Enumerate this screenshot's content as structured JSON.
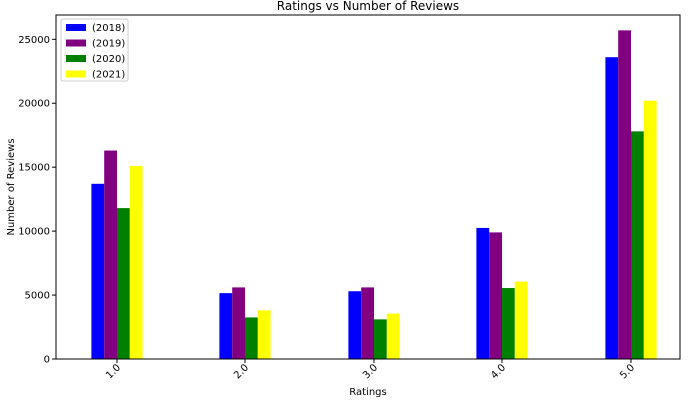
{
  "chart_data": {
    "type": "bar",
    "title": "Ratings vs Number of Reviews",
    "xlabel": "Ratings",
    "ylabel": "Number of Reviews",
    "categories": [
      "1.0",
      "2.0",
      "3.0",
      "4.0",
      "5.0"
    ],
    "ylim": [
      0,
      26900
    ],
    "yticks": [
      0,
      5000,
      10000,
      15000,
      20000,
      25000
    ],
    "series": [
      {
        "name": "(2018)",
        "color": "#0000ff",
        "values": [
          13700,
          5150,
          5300,
          10250,
          23600
        ]
      },
      {
        "name": "(2019)",
        "color": "#800080",
        "values": [
          16300,
          5600,
          5600,
          9900,
          25700
        ]
      },
      {
        "name": "(2020)",
        "color": "#008000",
        "values": [
          11800,
          3250,
          3100,
          5550,
          17800
        ]
      },
      {
        "name": "(2021)",
        "color": "#ffff00",
        "values": [
          15100,
          3800,
          3550,
          6050,
          20200
        ]
      }
    ],
    "legend": "top-left",
    "grid": false
  }
}
